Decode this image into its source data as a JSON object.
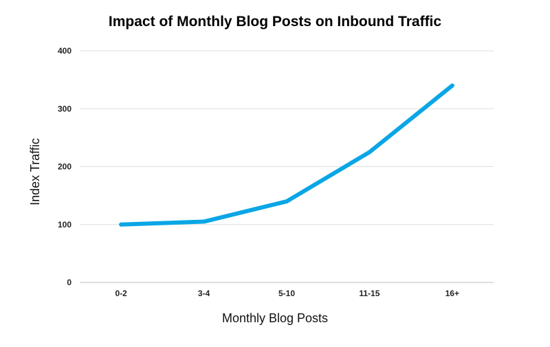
{
  "chart_data": {
    "type": "line",
    "title": "Impact of Monthly Blog Posts on Inbound Traffic",
    "xlabel": "Monthly Blog Posts",
    "ylabel": "Index Traffic",
    "categories": [
      "0-2",
      "3-4",
      "5-10",
      "11-15",
      "16+"
    ],
    "series": [
      {
        "values": [
          100,
          105,
          140,
          225,
          340
        ]
      }
    ],
    "ylim": [
      0,
      400
    ],
    "yticks": [
      0,
      100,
      200,
      300,
      400
    ],
    "grid": true,
    "legend": "none",
    "line_color": "#0aa6e6"
  }
}
